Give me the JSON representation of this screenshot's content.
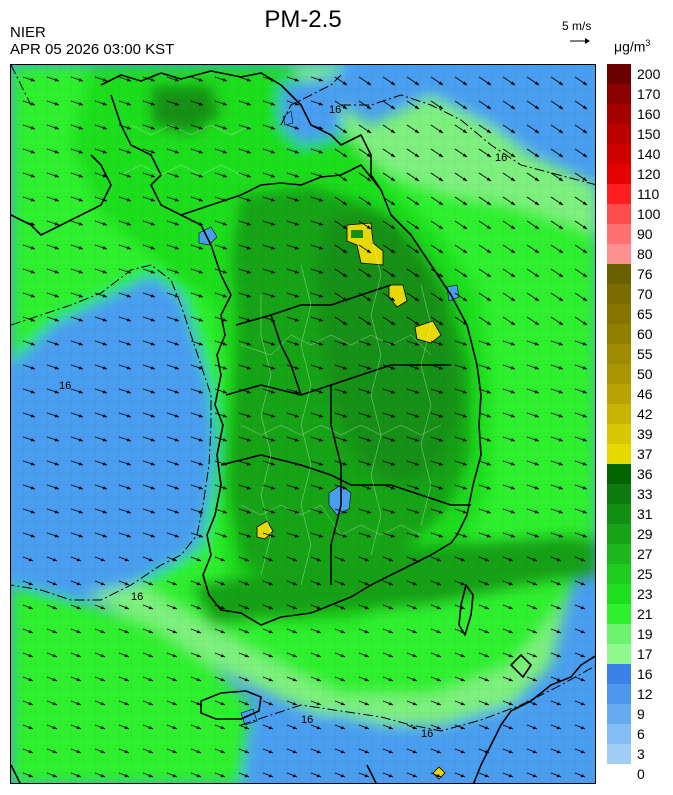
{
  "header": {
    "title": "PM-2.5",
    "org": "NIER",
    "timestamp": "APR 05 2026 03:00 KST",
    "wind_ref": "5 m/s",
    "unit": "μg/m",
    "unit_exp": "3"
  },
  "contour_labels": [
    {
      "id": "north",
      "text": "16"
    },
    {
      "id": "west",
      "text": "16"
    },
    {
      "id": "northeast",
      "text": "16"
    },
    {
      "id": "southwest",
      "text": "16"
    },
    {
      "id": "south",
      "text": "16"
    },
    {
      "id": "southeast",
      "text": "16"
    }
  ],
  "legend": {
    "labels": [
      "200",
      "170",
      "160",
      "150",
      "140",
      "120",
      "110",
      "100",
      "90",
      "80",
      "76",
      "70",
      "65",
      "60",
      "55",
      "50",
      "46",
      "42",
      "39",
      "37",
      "36",
      "33",
      "31",
      "29",
      "27",
      "25",
      "23",
      "21",
      "19",
      "17",
      "16",
      "12",
      "9",
      "6",
      "3",
      "0"
    ],
    "colors": [
      "#6a0000",
      "#8b0000",
      "#a50000",
      "#bb0000",
      "#d00000",
      "#e60000",
      "#ff1e1e",
      "#ff4c4c",
      "#ff7070",
      "#ff9090",
      "#6b6000",
      "#7a6c00",
      "#857500",
      "#918000",
      "#9e8b00",
      "#aa9600",
      "#b8a300",
      "#c8b400",
      "#d8c700",
      "#e7d900",
      "#006400",
      "#0c7a0c",
      "#139013",
      "#18a318",
      "#1eb81e",
      "#1ecd1e",
      "#1ede1e",
      "#2ef02e",
      "#6ef36e",
      "#8ff88f",
      "#3a82e6",
      "#4c96ee",
      "#66aaf2",
      "#84bdf4",
      "#a0cdf6"
    ]
  }
}
